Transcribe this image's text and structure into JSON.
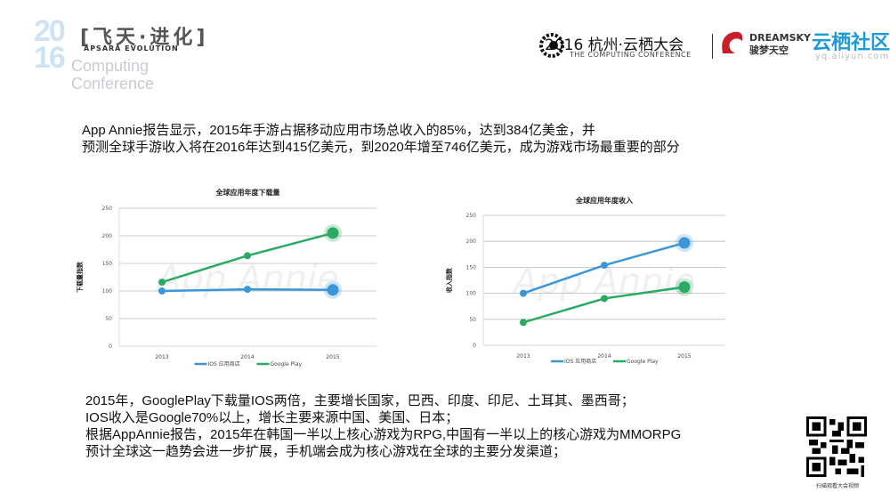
{
  "header": {
    "logo_year_top": "20",
    "logo_year_bottom": "16",
    "logo_title": "[飞天·进化]",
    "logo_subtitle": "APSARA EVOLUTION",
    "logo_faded_1": "Computing",
    "logo_faded_2": "Conference",
    "conference_title": "2016 杭州·云栖大会",
    "conference_subtitle": "THE COMPUTING CONFERENCE",
    "partner_logo": "DREAMSKY 骏梦天空",
    "community": "云栖社区",
    "community_url": "yq.aliyun.com"
  },
  "intro": [
    "App Annie报告显示，2015年手游占据移动应用市场总收入的85%，达到384亿美金，并",
    "预测全球手游收入将在2016年达到415亿美元，到2020年增至746亿美元，成为游戏市场最重要的部分"
  ],
  "summary": [
    "2015年，GooglePlay下载量IOS两倍，主要增长国家，巴西、印度、印尼、土耳其、墨西哥；",
    "IOS收入是Google70%以上，增长主要来源中国、美国、日本；",
    "根据AppAnnie报告，2015年在韩国一半以上核心游戏为RPG,中国有一半以上的核心游戏为MMORPG",
    "预计全球这一趋势会进一步扩展，手机端会成为核心游戏在全球的主要分发渠道；"
  ],
  "qr_caption": "扫描观看大会视频",
  "chart_data": [
    {
      "type": "line",
      "title": "全球应用年度下载量",
      "ylabel": "下载量指数",
      "xlabel": "",
      "watermark": "App Annie",
      "categories": [
        "2013",
        "2014",
        "2015"
      ],
      "ylim": [
        0,
        250
      ],
      "yticks": [
        0,
        50,
        100,
        150,
        200,
        250
      ],
      "grid": true,
      "legend": "bottom",
      "series": [
        {
          "name": "IOS 应用商店",
          "color": "#3a96d8",
          "values": [
            100,
            103,
            102
          ]
        },
        {
          "name": "Google Play",
          "color": "#2aaa62",
          "values": [
            116,
            164,
            205
          ]
        }
      ]
    },
    {
      "type": "line",
      "title": "全球应用年度收入",
      "ylabel": "收入指数",
      "xlabel": "",
      "watermark": "App Annie",
      "categories": [
        "2013",
        "2014",
        "2015"
      ],
      "ylim": [
        0,
        250
      ],
      "yticks": [
        0,
        50,
        100,
        150,
        200,
        250
      ],
      "grid": true,
      "legend": "bottom",
      "series": [
        {
          "name": "IOS 应用商店",
          "color": "#3a96d8",
          "values": [
            100,
            154,
            197
          ]
        },
        {
          "name": "Google Play",
          "color": "#2aaa62",
          "values": [
            44,
            90,
            112
          ]
        }
      ]
    }
  ]
}
